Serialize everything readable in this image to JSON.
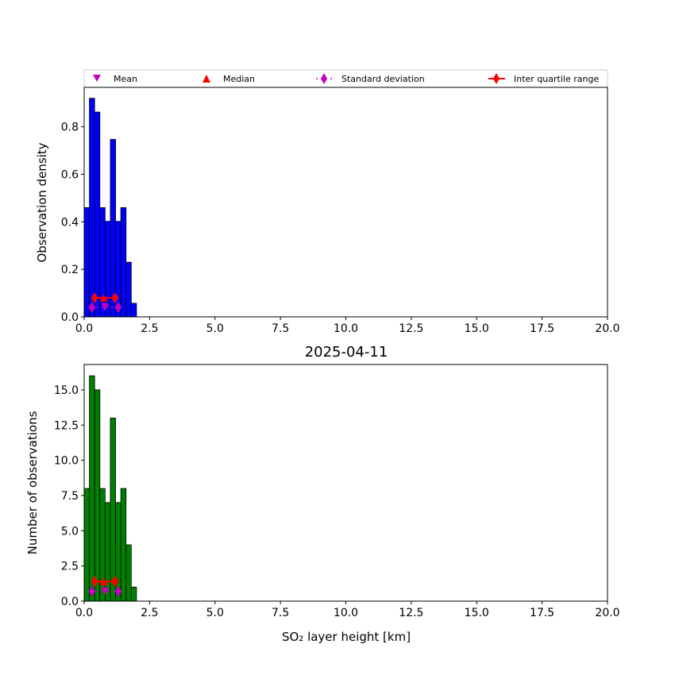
{
  "chart_data": [
    {
      "type": "bar",
      "title": "",
      "xlabel": "",
      "ylabel": "Observation density",
      "xlim": [
        0,
        20
      ],
      "ylim": [
        0,
        0.966
      ],
      "xticks": [
        "0.0",
        "2.5",
        "5.0",
        "7.5",
        "10.0",
        "12.5",
        "15.0",
        "17.5",
        "20.0"
      ],
      "yticks": [
        "0.0",
        "0.2",
        "0.4",
        "0.6",
        "0.8"
      ],
      "bin_edges": [
        0,
        0.2,
        0.4,
        0.6,
        0.8,
        1.0,
        1.2,
        1.4,
        1.6,
        1.8,
        2.0
      ],
      "values": [
        0.46,
        0.92,
        0.862,
        0.46,
        0.402,
        0.747,
        0.402,
        0.46,
        0.23,
        0.057
      ],
      "color": "#0000ff",
      "stats": {
        "mean": 0.8,
        "median": 0.75,
        "std_range": [
          0.3,
          1.3
        ],
        "iqr_range": [
          0.4,
          1.18
        ],
        "mean_y": 0.04,
        "median_y": 0.08
      },
      "legend": {
        "placement": "top",
        "entries": [
          "Mean",
          "Median",
          "Standard deviation",
          "Inter quartile range"
        ]
      }
    },
    {
      "type": "bar",
      "title": "2025-04-11",
      "xlabel": "SO₂ layer height [km]",
      "ylabel": "Number of observations",
      "xlim": [
        0,
        20
      ],
      "ylim": [
        0,
        16.8
      ],
      "xticks": [
        "0.0",
        "2.5",
        "5.0",
        "7.5",
        "10.0",
        "12.5",
        "15.0",
        "17.5",
        "20.0"
      ],
      "yticks": [
        "0.0",
        "2.5",
        "5.0",
        "7.5",
        "10.0",
        "12.5",
        "15.0"
      ],
      "bin_edges": [
        0,
        0.2,
        0.4,
        0.6,
        0.8,
        1.0,
        1.2,
        1.4,
        1.6,
        1.8,
        2.0
      ],
      "values": [
        8,
        16,
        15,
        8,
        7,
        13,
        7,
        8,
        4,
        1
      ],
      "color": "#008000",
      "stats": {
        "mean": 0.8,
        "median": 0.75,
        "std_range": [
          0.3,
          1.3
        ],
        "iqr_range": [
          0.4,
          1.18
        ],
        "mean_y": 0.7,
        "median_y": 1.4
      }
    }
  ],
  "colors": {
    "mean": "#bf00bf",
    "median": "#ff0000",
    "std": "#bf00bf",
    "iqr": "#ff0000"
  }
}
